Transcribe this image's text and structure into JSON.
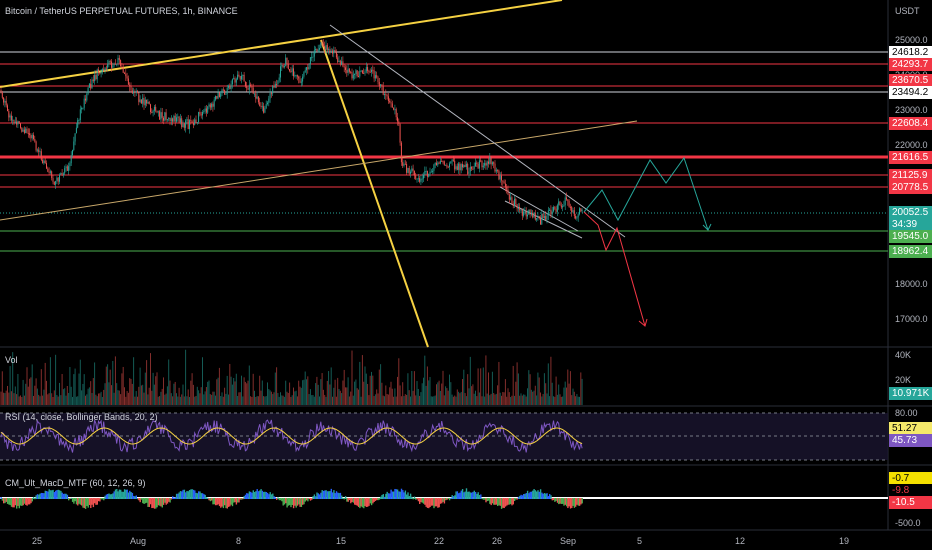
{
  "header": {
    "title": "Bitcoin / TetherUS PERPETUAL FUTURES, 1h, BINANCE",
    "currency": "USDT"
  },
  "price_axis": {
    "ticks": [
      "25000.0",
      "24000.0",
      "23000.0",
      "22000.0",
      "18000.0",
      "17000.0"
    ],
    "tags": [
      {
        "text": "24618.2",
        "bg": "#ffffff",
        "fg": "#000000"
      },
      {
        "text": "24293.7",
        "bg": "#f23645",
        "fg": "#ffffff"
      },
      {
        "text": "23670.5",
        "bg": "#f23645",
        "fg": "#ffffff"
      },
      {
        "text": "23494.2",
        "bg": "#ffffff",
        "fg": "#000000"
      },
      {
        "text": "22608.4",
        "bg": "#f23645",
        "fg": "#ffffff"
      },
      {
        "text": "21616.5",
        "bg": "#f23645",
        "fg": "#ffffff"
      },
      {
        "text": "21125.9",
        "bg": "#f23645",
        "fg": "#ffffff"
      },
      {
        "text": "20778.5",
        "bg": "#f23645",
        "fg": "#ffffff"
      },
      {
        "text": "20052.5",
        "bg": "#26a69a",
        "fg": "#ffffff"
      },
      {
        "text": "34:39",
        "bg": "#26a69a",
        "fg": "#ffffff"
      },
      {
        "text": "19545.0",
        "bg": "#4caf50",
        "fg": "#ffffff"
      },
      {
        "text": "18962.4",
        "bg": "#4caf50",
        "fg": "#ffffff"
      }
    ]
  },
  "volume_pane": {
    "label": "Vol",
    "ticks": [
      "40K",
      "20K"
    ],
    "value_tag": "10.971K"
  },
  "rsi_pane": {
    "label": "RSI (14, close, Bollinger Bands, 20, 2)",
    "ticks": [
      "80.00"
    ],
    "value_a": "51.27",
    "value_b": "45.73"
  },
  "macd_pane": {
    "label": "CM_Ult_MacD_MTF (60, 12, 26, 9)",
    "ticks": [
      "-500.0"
    ],
    "value_a": "-0.7",
    "value_b": "-9.8",
    "value_c": "-10.5"
  },
  "time_axis": {
    "labels": [
      "25",
      "Aug",
      "8",
      "15",
      "22",
      "26",
      "Sep",
      "5",
      "12",
      "19"
    ]
  },
  "colors": {
    "bull": "#26a69a",
    "bear": "#ef5350",
    "trendline_yellow": "#f5d142",
    "resistance_red": "#f23645",
    "support_green": "#4caf50",
    "projection_green": "#26a69a",
    "projection_red": "#f23645",
    "rsi_line": "#7e57c2",
    "rsi_ma": "#f5d142"
  }
}
